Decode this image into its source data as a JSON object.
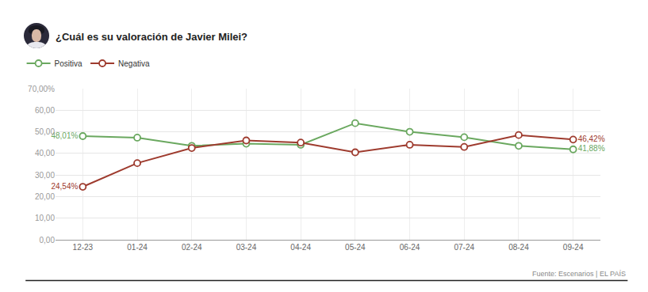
{
  "chart_data": {
    "type": "line",
    "title": "¿Cuál es su valoración de Javier Milei?",
    "source": "Fuente: Escenarios | EL PAÍS",
    "categories": [
      "12-23",
      "01-24",
      "02-24",
      "03-24",
      "04-24",
      "05-24",
      "06-24",
      "07-24",
      "08-24",
      "09-24"
    ],
    "series": [
      {
        "name": "Positiva",
        "color": "#6aa85f",
        "marker": "hollow_circle",
        "values": [
          48.01,
          47.3,
          43.5,
          44.5,
          44.0,
          54.0,
          50.0,
          47.5,
          43.5,
          41.88
        ],
        "value_labels": [
          "48,01%",
          null,
          null,
          null,
          null,
          null,
          null,
          null,
          null,
          "41,88%"
        ]
      },
      {
        "name": "Negativa",
        "color": "#9e3b2e",
        "marker": "hollow_circle",
        "values": [
          24.54,
          35.5,
          42.5,
          46.0,
          45.0,
          40.5,
          44.0,
          43.0,
          48.5,
          46.42
        ],
        "value_labels": [
          "24,54%",
          null,
          null,
          null,
          null,
          null,
          null,
          null,
          null,
          "46,42%"
        ]
      }
    ],
    "ylim": [
      0,
      70
    ],
    "yticks": [
      {
        "value": 0,
        "label": "0,00"
      },
      {
        "value": 10,
        "label": "10,00"
      },
      {
        "value": 20,
        "label": "20,00"
      },
      {
        "value": 30,
        "label": "30,00"
      },
      {
        "value": 40,
        "label": "40,00"
      },
      {
        "value": 50,
        "label": "50,00"
      },
      {
        "value": 60,
        "label": "60,00"
      },
      {
        "value": 70,
        "label": "70,00%"
      }
    ],
    "grid": true,
    "legend": "top-left"
  }
}
